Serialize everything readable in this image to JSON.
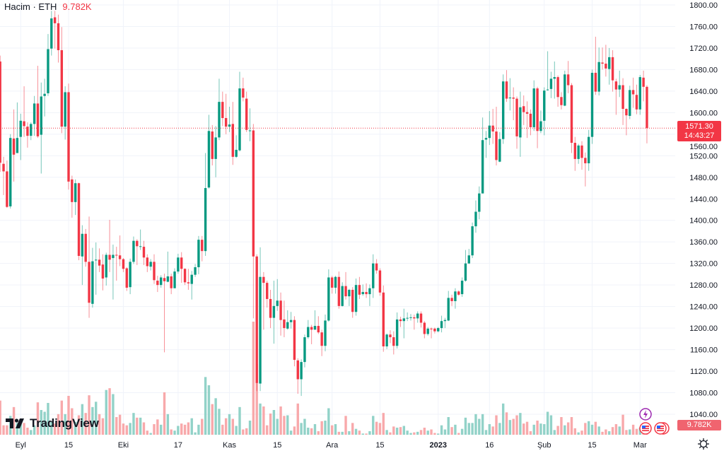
{
  "legend": {
    "title": "Hacim · ETH",
    "value": "9.782K"
  },
  "logo": {
    "text": "TradingView"
  },
  "current_price": {
    "price": "1571.30",
    "countdown": "14:43:27"
  },
  "volume_label": "9.782K",
  "colors": {
    "up": "#089981",
    "down": "#f23645",
    "up_volume": "#92d2c8",
    "down_volume": "#f8a9ab",
    "grid": "#f0f3fa",
    "event_purple": "#9c27b0"
  },
  "icons": [
    "lightning-event-icon",
    "us-flag-event-icon",
    "us-flag-event-icon",
    "gear-icon"
  ],
  "chart_data": {
    "type": "candlestick",
    "title": "ETH",
    "volume_series_name": "Hacim",
    "ylim": [
      1040,
      1800
    ],
    "y_ticks": [
      "1800.00",
      "1760.00",
      "1720.00",
      "1680.00",
      "1640.00",
      "1600.00",
      "1560.00",
      "1520.00",
      "1480.00",
      "1440.00",
      "1400.00",
      "1360.00",
      "1320.00",
      "1280.00",
      "1240.00",
      "1200.00",
      "1160.00",
      "1120.00",
      "1080.00",
      "1040.00"
    ],
    "y_tick_values": [
      1800,
      1760,
      1720,
      1680,
      1640,
      1600,
      1560,
      1520,
      1480,
      1440,
      1400,
      1360,
      1320,
      1280,
      1240,
      1200,
      1160,
      1120,
      1080,
      1040
    ],
    "x_ticks": [
      {
        "label": "Eyl",
        "index": 6
      },
      {
        "label": "15",
        "index": 20
      },
      {
        "label": "Eki",
        "index": 36
      },
      {
        "label": "17",
        "index": 52
      },
      {
        "label": "Kas",
        "index": 67
      },
      {
        "label": "15",
        "index": 81
      },
      {
        "label": "Ara",
        "index": 97
      },
      {
        "label": "15",
        "index": 111
      },
      {
        "label": "2023",
        "index": 128,
        "bold": true
      },
      {
        "label": "16",
        "index": 143
      },
      {
        "label": "Şub",
        "index": 159
      },
      {
        "label": "15",
        "index": 173
      },
      {
        "label": "Mar",
        "index": 187
      }
    ],
    "grid": true,
    "last_price": 1571.3,
    "ohlc_fields": [
      "open",
      "high",
      "low",
      "close"
    ],
    "candles": [
      [
        1695,
        1706,
        1490,
        1507
      ],
      [
        1505,
        1518,
        1447,
        1491
      ],
      [
        1491,
        1511,
        1423,
        1425
      ],
      [
        1426,
        1560,
        1422,
        1553
      ],
      [
        1552,
        1606,
        1472,
        1522
      ],
      [
        1525,
        1619,
        1525,
        1553
      ],
      [
        1555,
        1598,
        1512,
        1585
      ],
      [
        1584,
        1649,
        1555,
        1575
      ],
      [
        1574,
        1582,
        1535,
        1557
      ],
      [
        1557,
        1582,
        1549,
        1579
      ],
      [
        1579,
        1631,
        1557,
        1617
      ],
      [
        1617,
        1687,
        1553,
        1556
      ],
      [
        1559,
        1656,
        1487,
        1630
      ],
      [
        1631,
        1663,
        1593,
        1635
      ],
      [
        1636,
        1746,
        1631,
        1718
      ],
      [
        1719,
        1789,
        1706,
        1775
      ],
      [
        1777,
        1789,
        1719,
        1766
      ],
      [
        1766,
        1782,
        1693,
        1716
      ],
      [
        1716,
        1759,
        1562,
        1574
      ],
      [
        1574,
        1649,
        1550,
        1638
      ],
      [
        1638,
        1654,
        1457,
        1472
      ],
      [
        1476,
        1483,
        1405,
        1434
      ],
      [
        1434,
        1476,
        1410,
        1469
      ],
      [
        1469,
        1470,
        1326,
        1334
      ],
      [
        1333,
        1391,
        1280,
        1375
      ],
      [
        1375,
        1384,
        1314,
        1323
      ],
      [
        1323,
        1407,
        1219,
        1247
      ],
      [
        1245,
        1349,
        1238,
        1324
      ],
      [
        1326,
        1359,
        1262,
        1327
      ],
      [
        1327,
        1348,
        1304,
        1316
      ],
      [
        1318,
        1337,
        1270,
        1292
      ],
      [
        1294,
        1340,
        1279,
        1336
      ],
      [
        1336,
        1401,
        1304,
        1327
      ],
      [
        1330,
        1355,
        1253,
        1336
      ],
      [
        1336,
        1351,
        1288,
        1335
      ],
      [
        1335,
        1372,
        1315,
        1328
      ],
      [
        1328,
        1330,
        1304,
        1310
      ],
      [
        1311,
        1313,
        1269,
        1275
      ],
      [
        1276,
        1329,
        1263,
        1323
      ],
      [
        1323,
        1370,
        1319,
        1362
      ],
      [
        1362,
        1365,
        1317,
        1352
      ],
      [
        1351,
        1383,
        1345,
        1352
      ],
      [
        1351,
        1362,
        1317,
        1331
      ],
      [
        1331,
        1337,
        1304,
        1315
      ],
      [
        1314,
        1328,
        1307,
        1323
      ],
      [
        1323,
        1337,
        1282,
        1289
      ],
      [
        1288,
        1297,
        1267,
        1280
      ],
      [
        1280,
        1298,
        1275,
        1294
      ],
      [
        1293,
        1301,
        1155,
        1287
      ],
      [
        1286,
        1342,
        1285,
        1296
      ],
      [
        1296,
        1301,
        1263,
        1274
      ],
      [
        1274,
        1311,
        1274,
        1305
      ],
      [
        1305,
        1338,
        1301,
        1331
      ],
      [
        1331,
        1341,
        1284,
        1310
      ],
      [
        1310,
        1311,
        1280,
        1285
      ],
      [
        1285,
        1310,
        1271,
        1283
      ],
      [
        1282,
        1306,
        1253,
        1299
      ],
      [
        1299,
        1319,
        1295,
        1313
      ],
      [
        1313,
        1371,
        1300,
        1364
      ],
      [
        1364,
        1371,
        1324,
        1343
      ],
      [
        1343,
        1525,
        1334,
        1460
      ],
      [
        1461,
        1596,
        1459,
        1566
      ],
      [
        1565,
        1577,
        1502,
        1514
      ],
      [
        1514,
        1575,
        1480,
        1554
      ],
      [
        1554,
        1663,
        1549,
        1620
      ],
      [
        1620,
        1639,
        1575,
        1590
      ],
      [
        1590,
        1635,
        1560,
        1574
      ],
      [
        1574,
        1611,
        1564,
        1578
      ],
      [
        1579,
        1620,
        1503,
        1518
      ],
      [
        1518,
        1558,
        1516,
        1531
      ],
      [
        1530,
        1676,
        1528,
        1645
      ],
      [
        1645,
        1665,
        1621,
        1628
      ],
      [
        1626,
        1639,
        1564,
        1568
      ],
      [
        1566,
        1608,
        1547,
        1567
      ],
      [
        1567,
        1579,
        1218,
        1333
      ],
      [
        1333,
        1337,
        1083,
        1098
      ],
      [
        1097,
        1350,
        1083,
        1295
      ],
      [
        1295,
        1304,
        1197,
        1284
      ],
      [
        1284,
        1288,
        1238,
        1254
      ],
      [
        1254,
        1271,
        1200,
        1219
      ],
      [
        1219,
        1288,
        1171,
        1241
      ],
      [
        1241,
        1291,
        1232,
        1251
      ],
      [
        1251,
        1266,
        1186,
        1215
      ],
      [
        1216,
        1251,
        1183,
        1200
      ],
      [
        1199,
        1233,
        1197,
        1211
      ],
      [
        1211,
        1230,
        1199,
        1215
      ],
      [
        1215,
        1222,
        1129,
        1141
      ],
      [
        1140,
        1144,
        1078,
        1105
      ],
      [
        1105,
        1142,
        1074,
        1137
      ],
      [
        1137,
        1188,
        1127,
        1183
      ],
      [
        1183,
        1215,
        1180,
        1202
      ],
      [
        1202,
        1206,
        1170,
        1197
      ],
      [
        1197,
        1233,
        1197,
        1204
      ],
      [
        1204,
        1222,
        1189,
        1192
      ],
      [
        1192,
        1197,
        1148,
        1167
      ],
      [
        1167,
        1225,
        1157,
        1214
      ],
      [
        1214,
        1309,
        1212,
        1294
      ],
      [
        1294,
        1297,
        1264,
        1275
      ],
      [
        1275,
        1297,
        1264,
        1295
      ],
      [
        1295,
        1305,
        1236,
        1241
      ],
      [
        1241,
        1285,
        1240,
        1278
      ],
      [
        1278,
        1304,
        1253,
        1259
      ],
      [
        1259,
        1273,
        1241,
        1271
      ],
      [
        1271,
        1276,
        1219,
        1230
      ],
      [
        1230,
        1292,
        1223,
        1280
      ],
      [
        1280,
        1295,
        1254,
        1262
      ],
      [
        1263,
        1281,
        1260,
        1267
      ],
      [
        1267,
        1283,
        1256,
        1263
      ],
      [
        1263,
        1281,
        1241,
        1274
      ],
      [
        1274,
        1337,
        1256,
        1320
      ],
      [
        1320,
        1328,
        1301,
        1307
      ],
      [
        1307,
        1311,
        1260,
        1266
      ],
      [
        1266,
        1279,
        1156,
        1166
      ],
      [
        1166,
        1190,
        1161,
        1188
      ],
      [
        1188,
        1196,
        1172,
        1183
      ],
      [
        1183,
        1194,
        1151,
        1167
      ],
      [
        1167,
        1229,
        1162,
        1216
      ],
      [
        1216,
        1221,
        1202,
        1213
      ],
      [
        1213,
        1236,
        1181,
        1218
      ],
      [
        1218,
        1229,
        1213,
        1219
      ],
      [
        1219,
        1226,
        1214,
        1220
      ],
      [
        1220,
        1225,
        1197,
        1218
      ],
      [
        1218,
        1231,
        1210,
        1227
      ],
      [
        1227,
        1231,
        1201,
        1210
      ],
      [
        1210,
        1213,
        1181,
        1189
      ],
      [
        1189,
        1202,
        1186,
        1199
      ],
      [
        1199,
        1201,
        1181,
        1198
      ],
      [
        1199,
        1201,
        1190,
        1194
      ],
      [
        1194,
        1202,
        1192,
        1200
      ],
      [
        1200,
        1223,
        1192,
        1213
      ],
      [
        1213,
        1219,
        1200,
        1215
      ],
      [
        1214,
        1269,
        1213,
        1256
      ],
      [
        1256,
        1262,
        1241,
        1250
      ],
      [
        1250,
        1274,
        1236,
        1268
      ],
      [
        1268,
        1270,
        1260,
        1262
      ],
      [
        1263,
        1294,
        1258,
        1288
      ],
      [
        1288,
        1345,
        1286,
        1320
      ],
      [
        1320,
        1347,
        1319,
        1335
      ],
      [
        1335,
        1396,
        1330,
        1389
      ],
      [
        1389,
        1437,
        1377,
        1416
      ],
      [
        1416,
        1463,
        1402,
        1450
      ],
      [
        1450,
        1591,
        1450,
        1549
      ],
      [
        1550,
        1566,
        1516,
        1553
      ],
      [
        1553,
        1603,
        1540,
        1576
      ],
      [
        1576,
        1607,
        1542,
        1565
      ],
      [
        1565,
        1611,
        1502,
        1512
      ],
      [
        1509,
        1564,
        1508,
        1551
      ],
      [
        1551,
        1671,
        1542,
        1658
      ],
      [
        1658,
        1679,
        1620,
        1626
      ],
      [
        1627,
        1664,
        1604,
        1628
      ],
      [
        1628,
        1647,
        1586,
        1626
      ],
      [
        1626,
        1630,
        1533,
        1556
      ],
      [
        1554,
        1639,
        1518,
        1610
      ],
      [
        1612,
        1632,
        1577,
        1601
      ],
      [
        1601,
        1621,
        1553,
        1598
      ],
      [
        1598,
        1606,
        1558,
        1573
      ],
      [
        1573,
        1660,
        1566,
        1645
      ],
      [
        1645,
        1648,
        1534,
        1566
      ],
      [
        1566,
        1604,
        1562,
        1584
      ],
      [
        1585,
        1647,
        1558,
        1641
      ],
      [
        1642,
        1714,
        1641,
        1643
      ],
      [
        1644,
        1676,
        1627,
        1663
      ],
      [
        1663,
        1695,
        1626,
        1666
      ],
      [
        1666,
        1669,
        1611,
        1629
      ],
      [
        1629,
        1638,
        1606,
        1614
      ],
      [
        1613,
        1678,
        1612,
        1671
      ],
      [
        1671,
        1696,
        1636,
        1651
      ],
      [
        1651,
        1655,
        1525,
        1544
      ],
      [
        1544,
        1555,
        1492,
        1514
      ],
      [
        1514,
        1542,
        1505,
        1539
      ],
      [
        1539,
        1547,
        1494,
        1516
      ],
      [
        1516,
        1526,
        1463,
        1506
      ],
      [
        1506,
        1568,
        1492,
        1555
      ],
      [
        1555,
        1680,
        1542,
        1674
      ],
      [
        1674,
        1741,
        1633,
        1639
      ],
      [
        1639,
        1721,
        1632,
        1694
      ],
      [
        1693,
        1721,
        1680,
        1691
      ],
      [
        1691,
        1726,
        1667,
        1682
      ],
      [
        1681,
        1720,
        1652,
        1703
      ],
      [
        1703,
        1716,
        1639,
        1660
      ],
      [
        1658,
        1663,
        1596,
        1643
      ],
      [
        1643,
        1678,
        1629,
        1651
      ],
      [
        1651,
        1664,
        1577,
        1607
      ],
      [
        1607,
        1608,
        1558,
        1595
      ],
      [
        1594,
        1650,
        1588,
        1642
      ],
      [
        1642,
        1665,
        1609,
        1634
      ],
      [
        1633,
        1652,
        1597,
        1606
      ],
      [
        1606,
        1670,
        1596,
        1666
      ],
      [
        1665,
        1678,
        1621,
        1648
      ],
      [
        1648,
        1651,
        1543,
        1571.3
      ]
    ],
    "volume_unit": "K",
    "volumes": [
      58,
      16,
      16,
      32,
      47,
      20,
      18,
      20,
      12,
      8,
      16,
      55,
      42,
      39,
      54,
      22,
      19,
      35,
      58,
      35,
      66,
      45,
      22,
      33,
      52,
      37,
      67,
      47,
      56,
      35,
      28,
      76,
      79,
      69,
      30,
      34,
      19,
      16,
      20,
      37,
      29,
      29,
      21,
      7,
      3,
      18,
      26,
      17,
      72,
      35,
      9,
      7,
      15,
      19,
      17,
      21,
      28,
      4,
      17,
      27,
      98,
      84,
      52,
      62,
      44,
      17,
      28,
      35,
      27,
      15,
      47,
      9,
      11,
      24,
      192,
      120,
      53,
      48,
      16,
      36,
      42,
      27,
      48,
      32,
      33,
      7,
      14,
      53,
      20,
      27,
      12,
      11,
      18,
      6,
      23,
      24,
      45,
      16,
      18,
      5,
      5,
      32,
      6,
      20,
      10,
      7,
      2,
      2,
      6,
      32,
      22,
      20,
      37,
      8,
      4,
      14,
      12,
      13,
      15,
      7,
      3,
      4,
      5,
      8,
      12,
      7,
      9,
      3,
      2,
      16,
      9,
      30,
      13,
      17,
      3,
      10,
      29,
      20,
      20,
      35,
      27,
      35,
      8,
      18,
      14,
      33,
      20,
      53,
      38,
      25,
      27,
      33,
      37,
      19,
      22,
      6,
      17,
      24,
      19,
      18,
      39,
      33,
      8,
      15,
      30,
      16,
      21,
      30,
      11,
      4,
      7,
      20,
      23,
      17,
      22,
      14,
      5,
      9,
      6,
      13,
      18,
      14,
      34,
      8,
      9,
      17,
      10,
      12,
      18,
      9.782
    ]
  }
}
